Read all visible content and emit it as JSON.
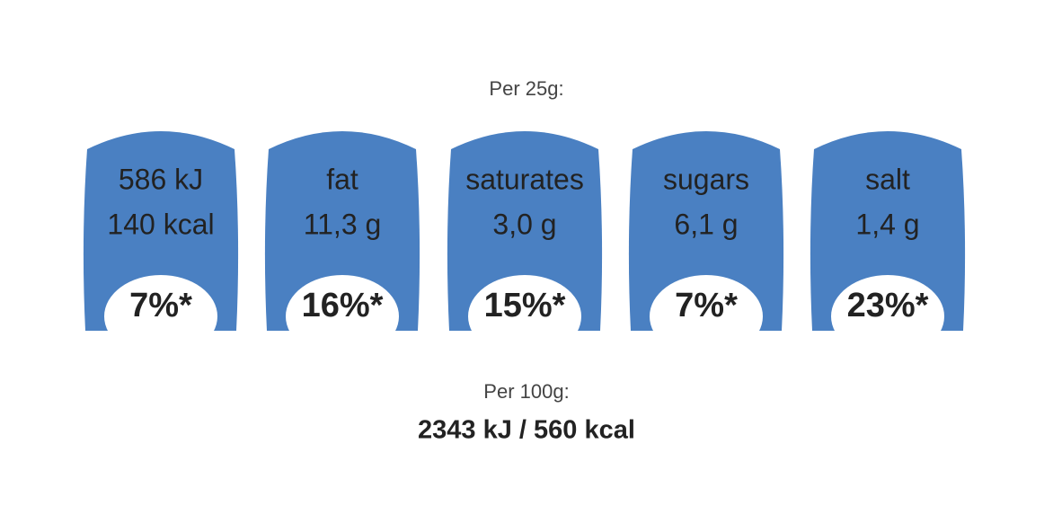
{
  "header": {
    "title": "Per 25g:"
  },
  "items": [
    {
      "line1": "586 kJ",
      "line2": "140 kcal",
      "percent": "7%*"
    },
    {
      "line1": "fat",
      "line2": "11,3 g",
      "percent": "16%*"
    },
    {
      "line1": "saturates",
      "line2": "3,0 g",
      "percent": "15%*"
    },
    {
      "line1": "sugars",
      "line2": "6,1 g",
      "percent": "7%*"
    },
    {
      "line1": "salt",
      "line2": "1,4 g",
      "percent": "23%*"
    }
  ],
  "footer": {
    "title": "Per 100g:",
    "energy": "2343 kJ / 560 kcal"
  }
}
